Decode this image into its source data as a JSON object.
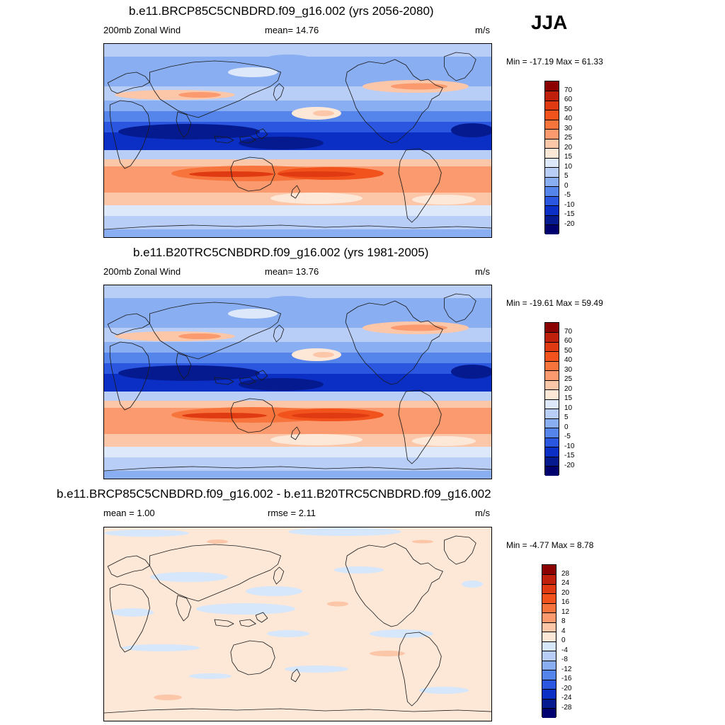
{
  "season": "JJA",
  "panels": [
    {
      "title": "b.e11.BRCP85C5CNBDRD.f09_g16.002 (yrs 2056-2080)",
      "left_label": "200mb Zonal Wind",
      "center_label": "mean=  14.76",
      "units": "m/s",
      "minmax": "Min = -17.19 Max =  61.33",
      "levels": [
        "70",
        "60",
        "50",
        "40",
        "30",
        "25",
        "20",
        "15",
        "10",
        "5",
        "0",
        "-5",
        "-10",
        "-15",
        "-20"
      ],
      "variant": "future"
    },
    {
      "title": "b.e11.B20TRC5CNBDRD.f09_g16.002 (yrs 1981-2005)",
      "left_label": "200mb Zonal Wind",
      "center_label": "mean=  13.76",
      "units": "m/s",
      "minmax": "Min = -19.61 Max =  59.49",
      "levels": [
        "70",
        "60",
        "50",
        "40",
        "30",
        "25",
        "20",
        "15",
        "10",
        "5",
        "0",
        "-5",
        "-10",
        "-15",
        "-20"
      ],
      "variant": "historical"
    },
    {
      "title": "b.e11.BRCP85C5CNBDRD.f09_g16.002 - b.e11.B20TRC5CNBDRD.f09_g16.002",
      "left_label": "mean =   1.00",
      "center_label": "rmse =   2.11",
      "units": "m/s",
      "minmax": "Min =  -4.77 Max =   8.78",
      "levels": [
        "28",
        "24",
        "20",
        "16",
        "12",
        "8",
        "4",
        "0",
        "-4",
        "-8",
        "-12",
        "-16",
        "-20",
        "-24",
        "-28"
      ],
      "variant": "difference"
    }
  ],
  "colors": {
    "wind_scale": [
      "#8b0000",
      "#bf200c",
      "#e03a12",
      "#f2521c",
      "#f7743c",
      "#fa9a6e",
      "#fcc6a8",
      "#fde8d8",
      "#dde9fb",
      "#b8cef7",
      "#8aaef2",
      "#5585ea",
      "#2a56e0",
      "#0b2ec4",
      "#051a8f",
      "#00006e"
    ],
    "diff_scale": [
      "#8b0000",
      "#bf200c",
      "#e03a12",
      "#f2521c",
      "#f7743c",
      "#fa9a6e",
      "#fcc6a8",
      "#fde8d8",
      "#d6e6fb",
      "#b8cef7",
      "#8aaef2",
      "#5585ea",
      "#2a56e0",
      "#0b2ec4",
      "#051a8f",
      "#00006e"
    ]
  }
}
